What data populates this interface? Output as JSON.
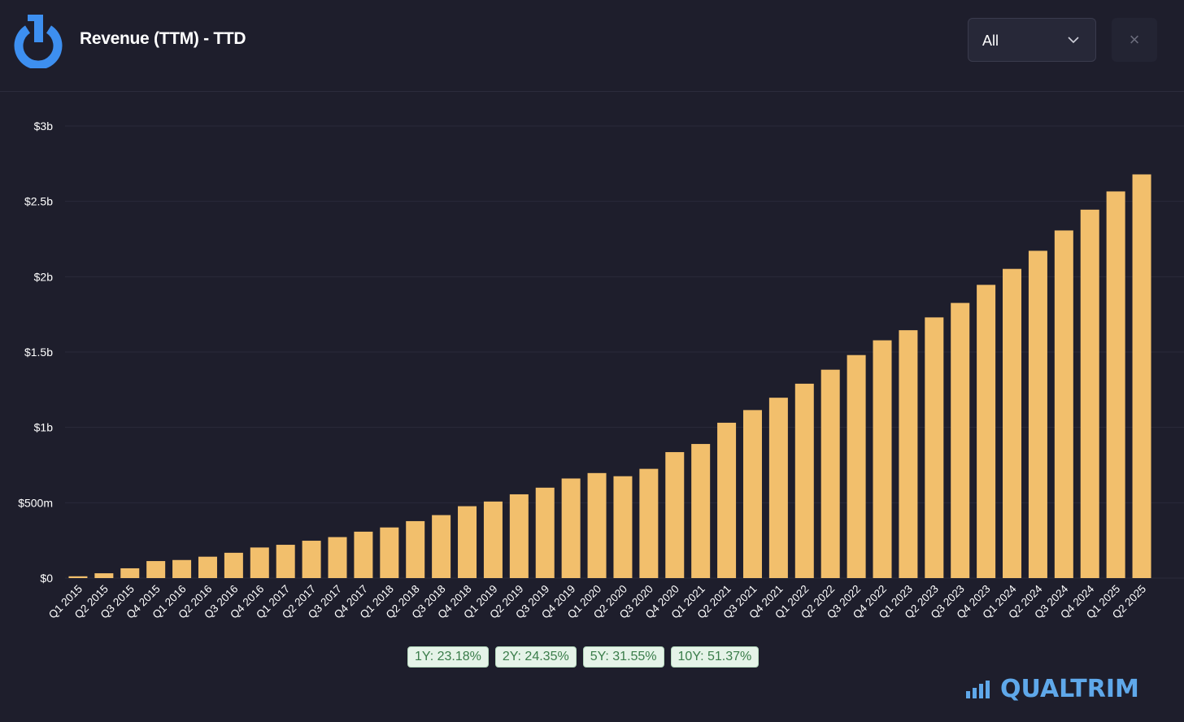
{
  "header": {
    "title": "Revenue (TTM) - TTD",
    "period_select": "All",
    "close_label": "×"
  },
  "colors": {
    "bar": "#f2bf6c",
    "background": "#1e1e2c",
    "accent": "#3d8ff0",
    "brand": "#5fa8ea"
  },
  "chart_data": {
    "type": "bar",
    "title": "Revenue (TTM) - TTD",
    "ylabel": "",
    "xlabel": "",
    "ylim": [
      0,
      3000
    ],
    "unit": "USD millions",
    "grid": true,
    "yticks": [
      {
        "v": 0,
        "label": "$0"
      },
      {
        "v": 500,
        "label": "$500m"
      },
      {
        "v": 1000,
        "label": "$1b"
      },
      {
        "v": 1500,
        "label": "$1.5b"
      },
      {
        "v": 2000,
        "label": "$2b"
      },
      {
        "v": 2500,
        "label": "$2.5b"
      },
      {
        "v": 3000,
        "label": "$3b"
      }
    ],
    "categories": [
      "Q1 2015",
      "Q2 2015",
      "Q3 2015",
      "Q4 2015",
      "Q1 2016",
      "Q2 2016",
      "Q3 2016",
      "Q4 2016",
      "Q1 2017",
      "Q2 2017",
      "Q3 2017",
      "Q4 2017",
      "Q1 2018",
      "Q2 2018",
      "Q3 2018",
      "Q4 2018",
      "Q1 2019",
      "Q2 2019",
      "Q3 2019",
      "Q4 2019",
      "Q1 2020",
      "Q2 2020",
      "Q3 2020",
      "Q4 2020",
      "Q1 2021",
      "Q2 2021",
      "Q3 2021",
      "Q4 2021",
      "Q1 2022",
      "Q2 2022",
      "Q3 2022",
      "Q4 2022",
      "Q1 2023",
      "Q2 2023",
      "Q3 2023",
      "Q4 2023",
      "Q1 2024",
      "Q2 2024",
      "Q3 2024",
      "Q4 2024",
      "Q1 2025",
      "Q2 2025"
    ],
    "values": [
      12,
      32,
      65,
      113,
      120,
      142,
      168,
      203,
      221,
      248,
      272,
      308,
      336,
      378,
      418,
      477,
      508,
      556,
      600,
      661,
      697,
      676,
      725,
      836,
      890,
      1031,
      1115,
      1197,
      1290,
      1383,
      1480,
      1578,
      1645,
      1730,
      1826,
      1946,
      2052,
      2172,
      2307,
      2445,
      2566,
      2679
    ]
  },
  "growth_badges": [
    "1Y: 23.18%",
    "2Y: 24.35%",
    "5Y: 31.55%",
    "10Y: 51.37%"
  ],
  "brand": "QUALTRIM"
}
